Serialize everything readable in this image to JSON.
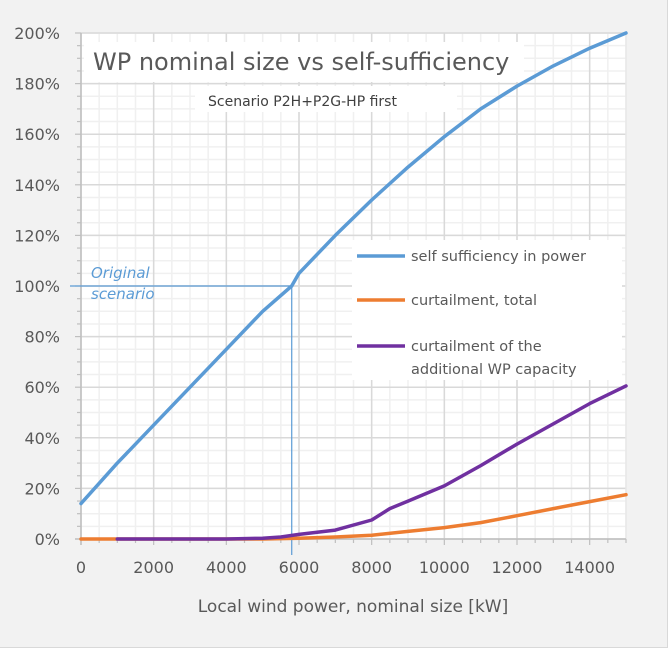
{
  "chart_data": {
    "type": "line",
    "title": "WP nominal size vs self-sufficiency",
    "subtitle": "Scenario P2H+P2G-HP first",
    "xlabel": "Local wind power, nominal size [kW]",
    "ylabel": "",
    "xlim": [
      0,
      15000
    ],
    "ylim": [
      0,
      2.0
    ],
    "x_ticks": [
      0,
      2000,
      4000,
      6000,
      8000,
      10000,
      12000,
      14000
    ],
    "x_tick_labels": [
      "0",
      "2000",
      "4000",
      "6000",
      "8000",
      "10000",
      "12000",
      "14000"
    ],
    "y_ticks": [
      0,
      0.2,
      0.4,
      0.6,
      0.8,
      1.0,
      1.2,
      1.4,
      1.6,
      1.8,
      2.0
    ],
    "y_tick_labels": [
      "0%",
      "20%",
      "40%",
      "60%",
      "80%",
      "100%",
      "120%",
      "140%",
      "160%",
      "180%",
      "200%"
    ],
    "grid": true,
    "legend_position": "center-right",
    "series": [
      {
        "name": "self sufficiency in power",
        "color": "#5b9bd5",
        "x": [
          0,
          1000,
          2000,
          3000,
          4000,
          5000,
          5800,
          6000,
          7000,
          8000,
          9000,
          10000,
          11000,
          12000,
          13000,
          14000,
          15000
        ],
        "values": [
          0.14,
          0.3,
          0.45,
          0.6,
          0.75,
          0.9,
          1.0,
          1.05,
          1.2,
          1.34,
          1.47,
          1.59,
          1.7,
          1.79,
          1.87,
          1.94,
          2.0
        ]
      },
      {
        "name": "curtailment, total",
        "color": "#ed7d31",
        "x": [
          0,
          1000,
          2000,
          3000,
          4000,
          5000,
          6000,
          7000,
          8000,
          9000,
          10000,
          11000,
          12000,
          13000,
          14000,
          15000
        ],
        "values": [
          0,
          0,
          0,
          0,
          0,
          0,
          0.003,
          0.008,
          0.015,
          0.03,
          0.045,
          0.065,
          0.092,
          0.12,
          0.148,
          0.175
        ]
      },
      {
        "name": "curtailment of the additional WP capacity",
        "color": "#7030a0",
        "x": [
          1000,
          2000,
          3000,
          4000,
          5000,
          5500,
          6000,
          7000,
          8000,
          8500,
          9000,
          10000,
          11000,
          12000,
          13000,
          14000,
          15000
        ],
        "values": [
          0,
          0,
          0,
          0,
          0.003,
          0.008,
          0.018,
          0.035,
          0.075,
          0.12,
          0.15,
          0.21,
          0.29,
          0.375,
          0.455,
          0.535,
          0.605
        ]
      }
    ],
    "annotations": [
      {
        "text_lines": [
          "Original",
          "scenario"
        ],
        "color": "#5b9bd5",
        "x": 5800,
        "y": 1.0
      }
    ]
  }
}
